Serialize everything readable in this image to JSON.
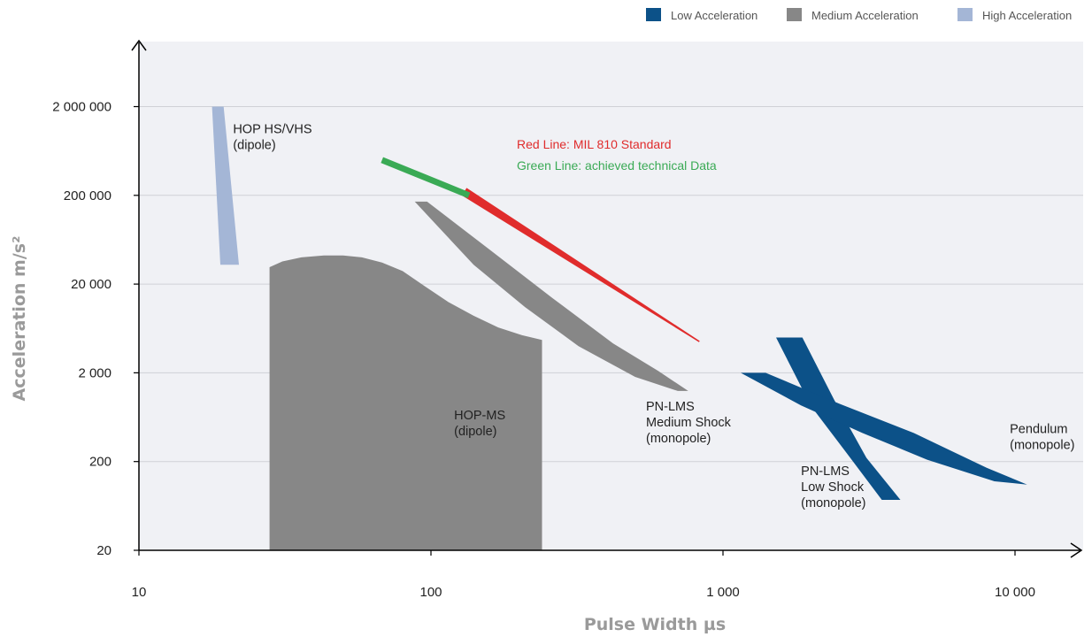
{
  "chart_data": {
    "type": "area",
    "title": "",
    "xlabel": "Pulse Width µs",
    "ylabel": "Acceleration m/s²",
    "xscale": "log",
    "yscale": "log",
    "xlim": [
      10,
      20000
    ],
    "ylim": [
      20,
      6000000
    ],
    "grid": "horizontal",
    "x_ticks": [
      {
        "value": 10,
        "label": "10"
      },
      {
        "value": 100,
        "label": "100"
      },
      {
        "value": 1000,
        "label": "1 000"
      },
      {
        "value": 10000,
        "label": "10 000"
      }
    ],
    "y_ticks": [
      {
        "value": 20,
        "label": "20"
      },
      {
        "value": 200,
        "label": "200"
      },
      {
        "value": 2000,
        "label": "2 000"
      },
      {
        "value": 20000,
        "label": "20 000"
      },
      {
        "value": 200000,
        "label": "200 000"
      },
      {
        "value": 2000000,
        "label": "2 000 000"
      }
    ],
    "legend": {
      "placement": "top-right",
      "entries": [
        {
          "label": "Low Acceleration",
          "color": "#0c5188"
        },
        {
          "label": "Medium Acceleration",
          "color": "#878787"
        },
        {
          "label": "High Acceleration",
          "color": "#a4b6d6"
        }
      ]
    },
    "annotations": [
      {
        "lines": [
          "Red Line: MIL 810 Standard"
        ],
        "color": "#e02c2c"
      },
      {
        "lines": [
          "Green Line: achieved technical Data"
        ],
        "color": "#3aaa55"
      }
    ],
    "regions": [
      {
        "label_lines": [
          "HOP HS/VHS",
          "(dipole)"
        ],
        "class": "High Acceleration",
        "color": "#a4b6d6",
        "polygon": [
          [
            17.8,
            2000000
          ],
          [
            19.5,
            2000000
          ],
          [
            22.0,
            33000
          ],
          [
            19.0,
            33000
          ]
        ],
        "label_at": [
          21,
          1000000
        ]
      },
      {
        "label_lines": [
          "HOP-MS",
          "(dipole)"
        ],
        "class": "Medium Acceleration",
        "color": "#878787",
        "polygon": [
          [
            28,
            20
          ],
          [
            28,
            31000
          ],
          [
            31,
            36000
          ],
          [
            36,
            40000
          ],
          [
            43,
            42000
          ],
          [
            50,
            42000
          ],
          [
            58,
            40000
          ],
          [
            68,
            35000
          ],
          [
            80,
            28000
          ],
          [
            95,
            19000
          ],
          [
            115,
            12500
          ],
          [
            140,
            8800
          ],
          [
            170,
            6500
          ],
          [
            205,
            5300
          ],
          [
            240,
            4700
          ],
          [
            240,
            20
          ]
        ],
        "label_at": [
          120,
          600
        ]
      },
      {
        "label_lines": [
          "PN-LMS",
          "Medium Shock",
          "(monopole)"
        ],
        "class": "Medium Acceleration",
        "color": "#878787",
        "polygon": [
          [
            88,
            170000
          ],
          [
            97,
            170000
          ],
          [
            160,
            48000
          ],
          [
            260,
            14000
          ],
          [
            420,
            4300
          ],
          [
            600,
            2100
          ],
          [
            760,
            1250
          ],
          [
            700,
            1250
          ],
          [
            500,
            1800
          ],
          [
            320,
            4000
          ],
          [
            210,
            11000
          ],
          [
            140,
            33000
          ]
        ],
        "label_at": [
          545,
          750
        ]
      },
      {
        "label_lines": [
          "PN-LMS",
          "Low Shock",
          "(monopole)"
        ],
        "class": "Low Acceleration",
        "color": "#0c5188",
        "polygon": [
          [
            1520,
            5000
          ],
          [
            1870,
            5000
          ],
          [
            2400,
            1000
          ],
          [
            3100,
            220
          ],
          [
            4050,
            74
          ],
          [
            3500,
            74
          ],
          [
            2700,
            230
          ],
          [
            2000,
            850
          ]
        ],
        "label_at": [
          1850,
          140
        ]
      },
      {
        "label_lines": [
          "Pendulum",
          "(monopole)"
        ],
        "class": "Low Acceleration",
        "color": "#0c5188",
        "polygon": [
          [
            1150,
            2000
          ],
          [
            1400,
            2000
          ],
          [
            2500,
            900
          ],
          [
            4500,
            420
          ],
          [
            8000,
            170
          ],
          [
            11000,
            110
          ],
          [
            8500,
            120
          ],
          [
            5000,
            210
          ],
          [
            3000,
            420
          ],
          [
            1850,
            860
          ]
        ],
        "label_at": [
          9600,
          420
        ]
      }
    ],
    "series": [
      {
        "name": "Red Line: MIL 810 Standard",
        "color": "#e02c2c",
        "band": [
          [
            130,
            220000
          ],
          [
            830,
            4500
          ]
        ],
        "width_start": 10,
        "width_end": 1.5
      },
      {
        "name": "Green Line: achieved technical Data",
        "color": "#3aaa55",
        "band": [
          [
            68,
            500000
          ],
          [
            135,
            200000
          ]
        ],
        "width_start": 7,
        "width_end": 7
      }
    ]
  }
}
